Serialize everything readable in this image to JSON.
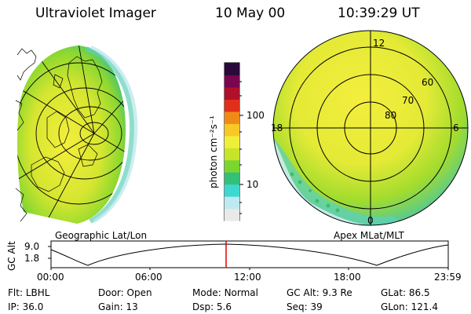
{
  "header": {
    "instrument": "Ultraviolet Imager",
    "date": "10 May 00",
    "time": "10:39:29 UT"
  },
  "colorbar": {
    "unit": "photon cm⁻²s⁻¹",
    "ticks": [
      "100",
      "10"
    ],
    "scale": "log",
    "colors": [
      "#e9e9e9",
      "#bdeaf0",
      "#3fd8d0",
      "#33c07a",
      "#7ad62e",
      "#c6e52a",
      "#f1ee3a",
      "#f7c826",
      "#f08a17",
      "#e0301a",
      "#b0102a",
      "#7a0650",
      "#2a0a3a"
    ]
  },
  "left_panel": {
    "caption": "Geographic Lat/Lon"
  },
  "right_panel": {
    "caption": "Apex MLat/MLT",
    "mlt_labels": {
      "top": "12",
      "left": "18",
      "right": "6",
      "bottom": "0"
    },
    "lat_labels": [
      "60",
      "70",
      "80"
    ]
  },
  "altitude_plot": {
    "ylabel": "GC Alt",
    "yticks": [
      "9.0",
      "1.8"
    ],
    "xticks": [
      "00:00",
      "06:00",
      "12:00",
      "18:00",
      "23:59"
    ],
    "marker_color": "#e00000"
  },
  "info": {
    "row1": [
      {
        "label": "Flt:",
        "value": "LBHL"
      },
      {
        "label": "Door:",
        "value": "Open"
      },
      {
        "label": "Mode:",
        "value": "Normal"
      },
      {
        "label": "GC Alt:",
        "value": "9.3 Re"
      },
      {
        "label": "GLat:",
        "value": "86.5"
      }
    ],
    "row2": [
      {
        "label": "IP:",
        "value": "36.0"
      },
      {
        "label": "Gain:",
        "value": "13"
      },
      {
        "label": "Dsp:",
        "value": "5.6"
      },
      {
        "label": "Seq:",
        "value": "39"
      },
      {
        "label": "GLon:",
        "value": "121.4"
      }
    ]
  }
}
